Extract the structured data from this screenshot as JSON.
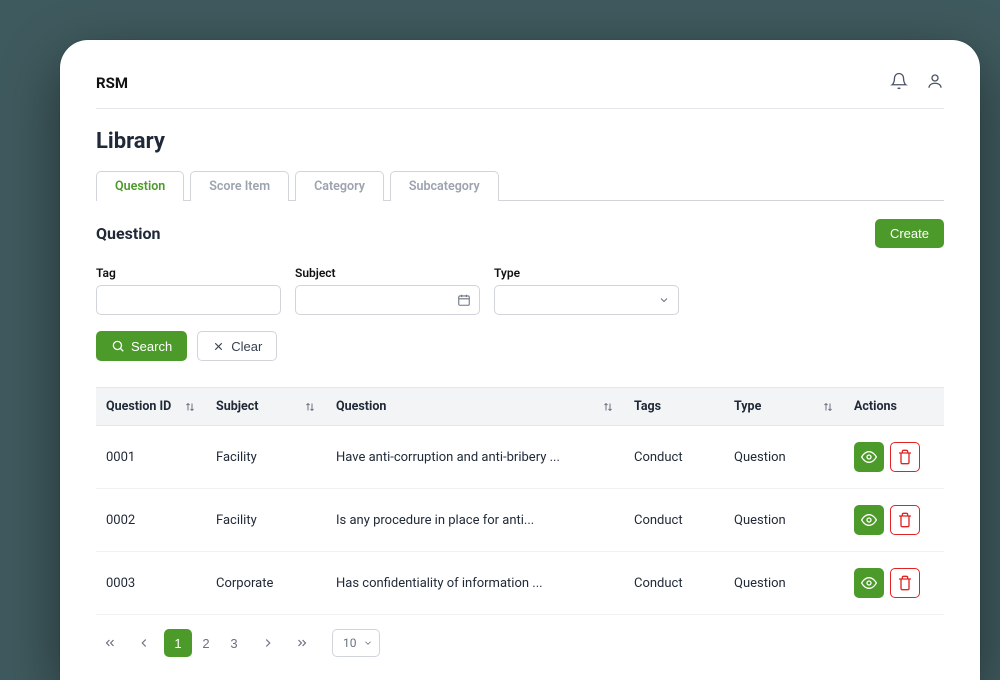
{
  "brand": "RSM",
  "page_title": "Library",
  "tabs": [
    {
      "label": "Question",
      "active": true
    },
    {
      "label": "Score Item",
      "active": false
    },
    {
      "label": "Category",
      "active": false
    },
    {
      "label": "Subcategory",
      "active": false
    }
  ],
  "section_title": "Question",
  "create_label": "Create",
  "filters": {
    "tag_label": "Tag",
    "subject_label": "Subject",
    "type_label": "Type"
  },
  "search_label": "Search",
  "clear_label": "Clear",
  "columns": {
    "id": "Question ID",
    "subject": "Subject",
    "question": "Question",
    "tags": "Tags",
    "type": "Type",
    "actions": "Actions"
  },
  "rows": [
    {
      "id": "0001",
      "subject": "Facility",
      "question": "Have anti-corruption and anti-bribery ...",
      "tags": "Conduct",
      "type": "Question"
    },
    {
      "id": "0002",
      "subject": "Facility",
      "question": "Is any procedure in place for anti...",
      "tags": "Conduct",
      "type": "Question"
    },
    {
      "id": "0003",
      "subject": "Corporate",
      "question": "Has confidentiality of information ...",
      "tags": "Conduct",
      "type": "Question"
    }
  ],
  "pagination": {
    "pages": [
      "1",
      "2",
      "3"
    ],
    "active": "1",
    "page_size": "10"
  },
  "colors": {
    "primary": "#4c9a2a",
    "danger": "#e02424",
    "text": "#1f2937",
    "muted": "#6b7280",
    "border": "#d1d5db",
    "header_bg": "#f3f4f6"
  }
}
